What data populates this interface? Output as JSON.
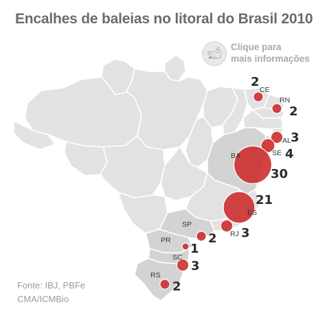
{
  "title": "Encalhes de baleias no litoral do Brasil 2010",
  "hint": {
    "icon": "whale-icon",
    "line1": "Clique para",
    "line2": "mais informações"
  },
  "source": {
    "line1": "Fonte: IBJ, PBFe",
    "line2": "CMA/ICMBio"
  },
  "colors": {
    "bubble": "#cc2929",
    "land": "#e2e2e2",
    "highlight": "#d3d3d3"
  },
  "strandings": [
    {
      "uf": "CE",
      "count": 2
    },
    {
      "uf": "RN",
      "count": 2
    },
    {
      "uf": "AL",
      "count": 3
    },
    {
      "uf": "SE",
      "count": 4
    },
    {
      "uf": "BA",
      "count": 30
    },
    {
      "uf": "ES",
      "count": 21
    },
    {
      "uf": "RJ",
      "count": 3
    },
    {
      "uf": "SP",
      "count": 2
    },
    {
      "uf": "PR",
      "count": 1
    },
    {
      "uf": "SC",
      "count": 3
    },
    {
      "uf": "RS",
      "count": 2
    }
  ]
}
